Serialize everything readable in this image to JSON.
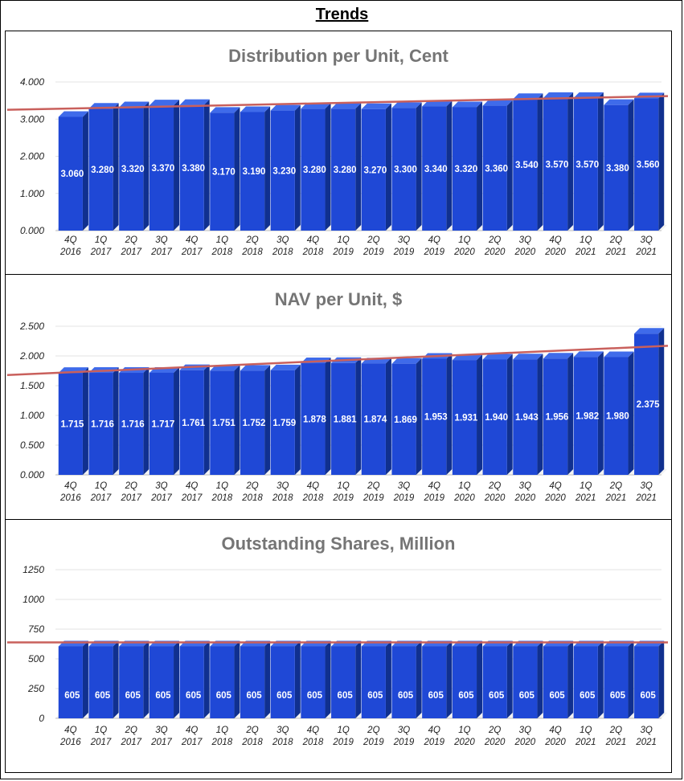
{
  "page_title": "Trends",
  "colors": {
    "bar_front": "#1f48d6",
    "bar_side": "#10308f",
    "bar_top": "#3f6bea",
    "trendline": "#c9605c",
    "grid": "#e3e3e3",
    "title_gray": "#757575"
  },
  "chart_data": [
    {
      "type": "bar",
      "title": "Distribution per Unit, Cent",
      "categories": [
        "4Q 2016",
        "1Q 2017",
        "2Q 2017",
        "3Q 2017",
        "4Q 2017",
        "1Q 2018",
        "2Q 2018",
        "3Q 2018",
        "4Q 2018",
        "1Q 2019",
        "2Q 2019",
        "3Q 2019",
        "4Q 2019",
        "1Q 2020",
        "2Q 2020",
        "3Q 2020",
        "4Q 2020",
        "1Q 2021",
        "2Q 2021",
        "3Q 2021"
      ],
      "category_lines": [
        [
          "4Q",
          "2016"
        ],
        [
          "1Q",
          "2017"
        ],
        [
          "2Q",
          "2017"
        ],
        [
          "3Q",
          "2017"
        ],
        [
          "4Q",
          "2017"
        ],
        [
          "1Q",
          "2018"
        ],
        [
          "2Q",
          "2018"
        ],
        [
          "3Q",
          "2018"
        ],
        [
          "4Q",
          "2018"
        ],
        [
          "1Q",
          "2019"
        ],
        [
          "2Q",
          "2019"
        ],
        [
          "3Q",
          "2019"
        ],
        [
          "4Q",
          "2019"
        ],
        [
          "1Q",
          "2020"
        ],
        [
          "2Q",
          "2020"
        ],
        [
          "3Q",
          "2020"
        ],
        [
          "4Q",
          "2020"
        ],
        [
          "1Q",
          "2021"
        ],
        [
          "2Q",
          "2021"
        ],
        [
          "3Q",
          "2021"
        ]
      ],
      "values": [
        3.06,
        3.28,
        3.32,
        3.37,
        3.38,
        3.17,
        3.19,
        3.23,
        3.28,
        3.28,
        3.27,
        3.3,
        3.34,
        3.32,
        3.36,
        3.54,
        3.57,
        3.57,
        3.38,
        3.56
      ],
      "labels": [
        "3.060",
        "3.280",
        "3.320",
        "3.370",
        "3.380",
        "3.170",
        "3.190",
        "3.230",
        "3.280",
        "3.280",
        "3.270",
        "3.300",
        "3.340",
        "3.320",
        "3.360",
        "3.540",
        "3.570",
        "3.570",
        "3.380",
        "3.560"
      ],
      "ylim": [
        0,
        4
      ],
      "yticks": [
        "0.000",
        "1.000",
        "2.000",
        "3.000",
        "4.000"
      ],
      "ytick_values": [
        0,
        1,
        2,
        3,
        4
      ],
      "trendline": true,
      "grid": true
    },
    {
      "type": "bar",
      "title": "NAV per Unit, $",
      "categories": [
        "4Q 2016",
        "1Q 2017",
        "2Q 2017",
        "3Q 2017",
        "4Q 2017",
        "1Q 2018",
        "2Q 2018",
        "3Q 2018",
        "4Q 2018",
        "1Q 2019",
        "2Q 2019",
        "3Q 2019",
        "4Q 2019",
        "1Q 2020",
        "2Q 2020",
        "3Q 2020",
        "4Q 2020",
        "1Q 2021",
        "2Q 2021",
        "3Q 2021"
      ],
      "category_lines": [
        [
          "4Q",
          "2016"
        ],
        [
          "1Q",
          "2017"
        ],
        [
          "2Q",
          "2017"
        ],
        [
          "3Q",
          "2017"
        ],
        [
          "4Q",
          "2017"
        ],
        [
          "1Q",
          "2018"
        ],
        [
          "2Q",
          "2018"
        ],
        [
          "3Q",
          "2018"
        ],
        [
          "4Q",
          "2018"
        ],
        [
          "1Q",
          "2019"
        ],
        [
          "2Q",
          "2019"
        ],
        [
          "3Q",
          "2019"
        ],
        [
          "4Q",
          "2019"
        ],
        [
          "1Q",
          "2020"
        ],
        [
          "2Q",
          "2020"
        ],
        [
          "3Q",
          "2020"
        ],
        [
          "4Q",
          "2020"
        ],
        [
          "1Q",
          "2021"
        ],
        [
          "2Q",
          "2021"
        ],
        [
          "3Q",
          "2021"
        ]
      ],
      "values": [
        1.715,
        1.716,
        1.716,
        1.717,
        1.761,
        1.751,
        1.752,
        1.759,
        1.878,
        1.881,
        1.874,
        1.869,
        1.953,
        1.931,
        1.94,
        1.943,
        1.956,
        1.982,
        1.98,
        2.375
      ],
      "labels": [
        "1.715",
        "1.716",
        "1.716",
        "1.717",
        "1.761",
        "1.751",
        "1.752",
        "1.759",
        "1.878",
        "1.881",
        "1.874",
        "1.869",
        "1.953",
        "1.931",
        "1.940",
        "1.943",
        "1.956",
        "1.982",
        "1.980",
        "2.375"
      ],
      "ylim": [
        0,
        2.5
      ],
      "yticks": [
        "0.000",
        "0.500",
        "1.000",
        "1.500",
        "2.000",
        "2.500"
      ],
      "ytick_values": [
        0,
        0.5,
        1,
        1.5,
        2,
        2.5
      ],
      "trendline": true,
      "grid": true
    },
    {
      "type": "bar",
      "title": "Outstanding Shares, Million",
      "categories": [
        "4Q 2016",
        "1Q 2017",
        "2Q 2017",
        "3Q 2017",
        "4Q 2017",
        "1Q 2018",
        "2Q 2018",
        "3Q 2018",
        "4Q 2018",
        "1Q 2019",
        "2Q 2019",
        "3Q 2019",
        "4Q 2019",
        "1Q 2020",
        "2Q 2020",
        "3Q 2020",
        "4Q 2020",
        "1Q 2021",
        "2Q 2021",
        "3Q 2021"
      ],
      "category_lines": [
        [
          "4Q",
          "2016"
        ],
        [
          "1Q",
          "2017"
        ],
        [
          "2Q",
          "2017"
        ],
        [
          "3Q",
          "2017"
        ],
        [
          "4Q",
          "2017"
        ],
        [
          "1Q",
          "2018"
        ],
        [
          "2Q",
          "2018"
        ],
        [
          "3Q",
          "2018"
        ],
        [
          "4Q",
          "2018"
        ],
        [
          "1Q",
          "2019"
        ],
        [
          "2Q",
          "2019"
        ],
        [
          "3Q",
          "2019"
        ],
        [
          "4Q",
          "2019"
        ],
        [
          "1Q",
          "2020"
        ],
        [
          "2Q",
          "2020"
        ],
        [
          "3Q",
          "2020"
        ],
        [
          "4Q",
          "2020"
        ],
        [
          "1Q",
          "2021"
        ],
        [
          "2Q",
          "2021"
        ],
        [
          "3Q",
          "2021"
        ]
      ],
      "values": [
        605,
        605,
        605,
        605,
        605,
        605,
        605,
        605,
        605,
        605,
        605,
        605,
        605,
        605,
        605,
        605,
        605,
        605,
        605,
        605
      ],
      "labels": [
        "605",
        "605",
        "605",
        "605",
        "605",
        "605",
        "605",
        "605",
        "605",
        "605",
        "605",
        "605",
        "605",
        "605",
        "605",
        "605",
        "605",
        "605",
        "605",
        "605"
      ],
      "ylim": [
        0,
        1250
      ],
      "yticks": [
        "0",
        "250",
        "500",
        "750",
        "1000",
        "1250"
      ],
      "ytick_values": [
        0,
        250,
        500,
        750,
        1000,
        1250
      ],
      "trendline": true,
      "grid": true
    }
  ]
}
